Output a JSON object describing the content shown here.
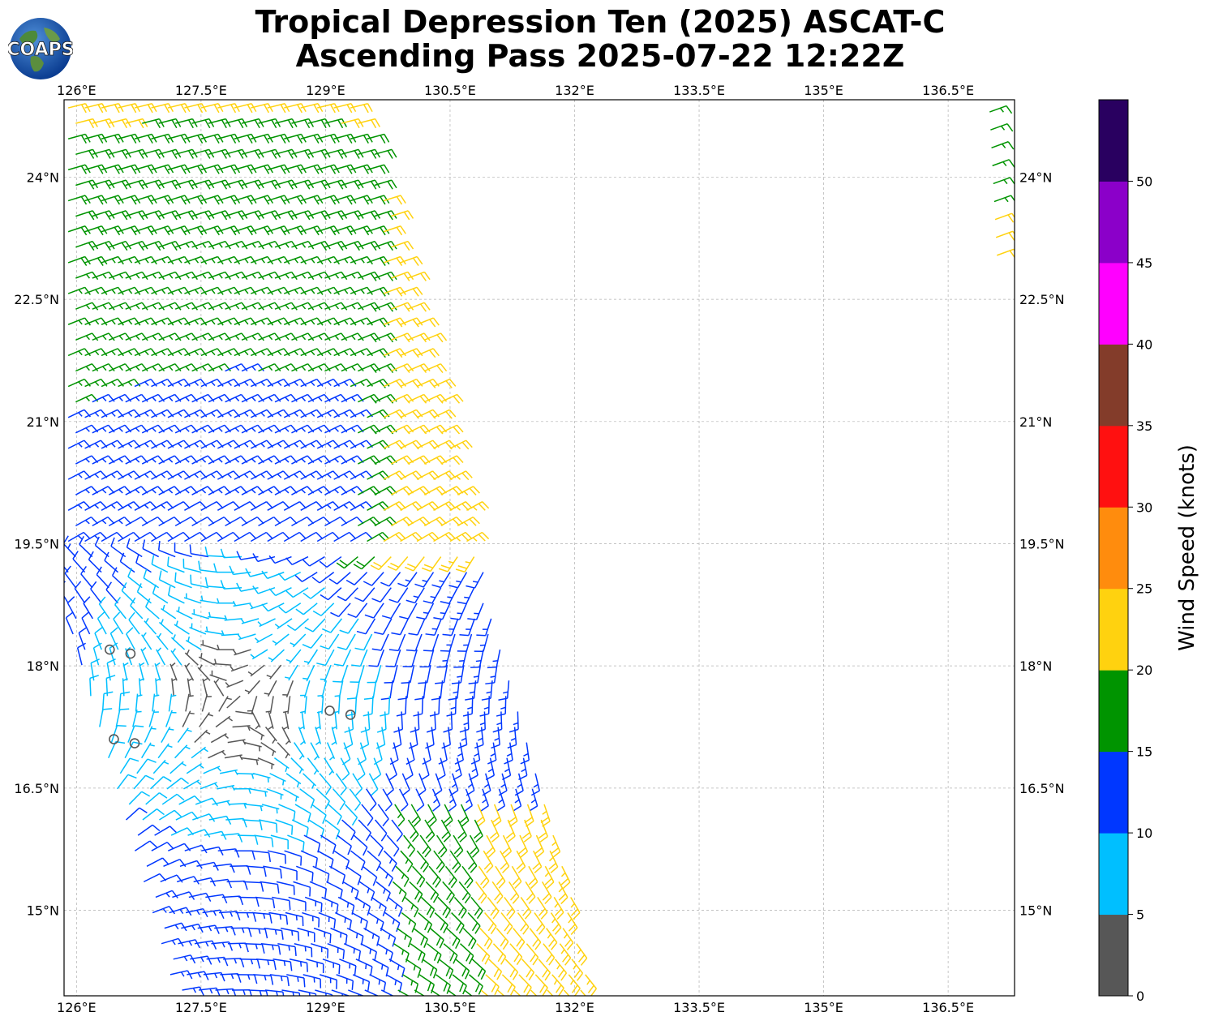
{
  "title": {
    "line1": "Tropical Depression Ten (2025) ASCAT-C",
    "line2": "Ascending Pass 2025-07-22 12:22Z"
  },
  "logo": {
    "text": "COAPS",
    "icon": "globe-logo"
  },
  "map": {
    "lon_range": [
      125.85,
      137.3
    ],
    "lat_range": [
      13.95,
      24.95
    ],
    "lon_ticks": [
      {
        "value": 126.0,
        "label": "126°E"
      },
      {
        "value": 127.5,
        "label": "127.5°E"
      },
      {
        "value": 129.0,
        "label": "129°E"
      },
      {
        "value": 130.5,
        "label": "130.5°E"
      },
      {
        "value": 132.0,
        "label": "132°E"
      },
      {
        "value": 133.5,
        "label": "133.5°E"
      },
      {
        "value": 135.0,
        "label": "135°E"
      },
      {
        "value": 136.5,
        "label": "136.5°E"
      }
    ],
    "lat_ticks": [
      {
        "value": 24.0,
        "label": "24°N"
      },
      {
        "value": 22.5,
        "label": "22.5°N"
      },
      {
        "value": 21.0,
        "label": "21°N"
      },
      {
        "value": 19.5,
        "label": "19.5°N"
      },
      {
        "value": 18.0,
        "label": "18°N"
      },
      {
        "value": 16.5,
        "label": "16.5°N"
      },
      {
        "value": 15.0,
        "label": "15°N"
      }
    ],
    "grid": true
  },
  "colorbar": {
    "label": "Wind Speed (knots)",
    "ticks": [
      "0",
      "5",
      "10",
      "15",
      "20",
      "25",
      "30",
      "35",
      "40",
      "45",
      "50"
    ],
    "colors": [
      "#575757",
      "#00bfff",
      "#0037ff",
      "#009400",
      "#ffd20f",
      "#ff8c0d",
      "#ff1010",
      "#833c2a",
      "#ff00ff",
      "#8b00c9",
      "#290060"
    ]
  },
  "wind_field": {
    "units": "knots",
    "swath_edge_east_lon": [
      [
        24.9,
        129.45
      ],
      [
        15.0,
        132.0
      ]
    ],
    "swath_edge_west_lon": 125.9,
    "second_swath_west_lon": 137.0,
    "calm_centers": [
      [
        18.2,
        126.4
      ],
      [
        18.15,
        126.65
      ],
      [
        17.1,
        126.45
      ],
      [
        17.05,
        126.7
      ],
      [
        17.45,
        129.05
      ],
      [
        17.4,
        129.3
      ]
    ]
  }
}
